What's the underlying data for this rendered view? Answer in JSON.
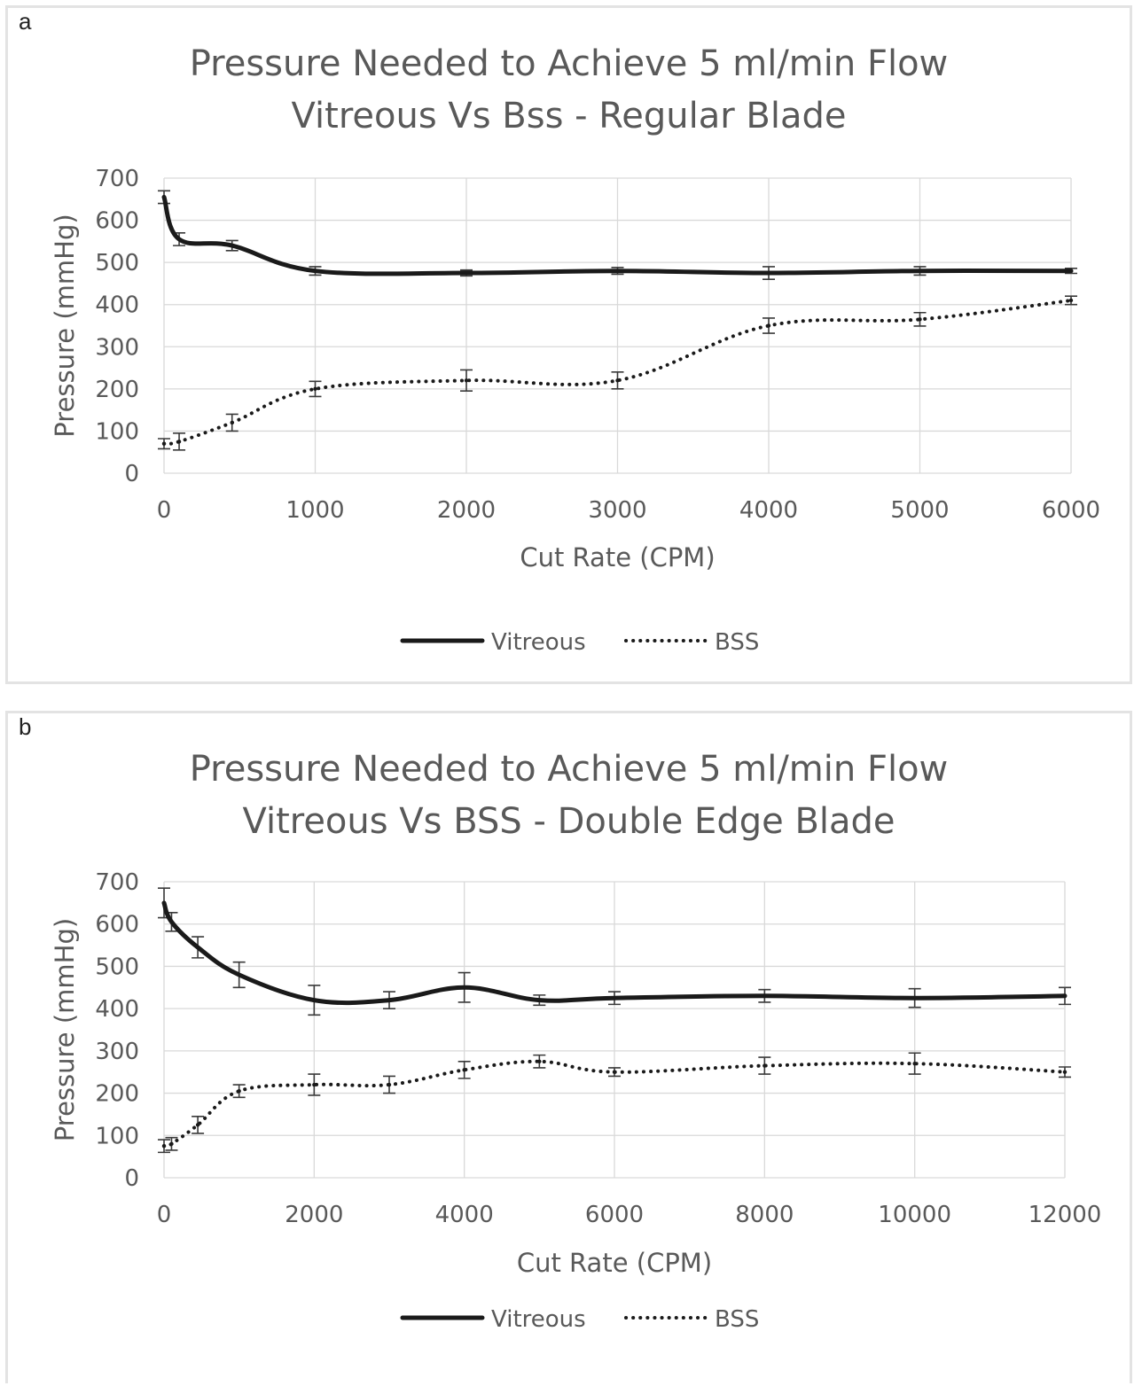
{
  "chart_data": [
    {
      "panel_label": "a",
      "type": "line",
      "title": "Pressure Needed to Achieve 5 ml/min Flow",
      "subtitle": "Vitreous Vs Bss - Regular Blade",
      "xlabel": "Cut Rate (CPM)",
      "ylabel": "Pressure (mmHg)",
      "xlim": [
        0,
        6000
      ],
      "ylim": [
        0,
        700
      ],
      "xticks": [
        0,
        1000,
        2000,
        3000,
        4000,
        5000,
        6000
      ],
      "yticks": [
        0,
        100,
        200,
        300,
        400,
        500,
        600,
        700
      ],
      "grid": true,
      "legend_position": "bottom",
      "series": [
        {
          "name": "Vitreous",
          "style": "solid",
          "color": "#1a1a1a",
          "x": [
            0,
            100,
            450,
            1000,
            2000,
            3000,
            4000,
            5000,
            6000
          ],
          "y": [
            655,
            555,
            540,
            480,
            475,
            480,
            475,
            480,
            480
          ],
          "error": [
            15,
            15,
            12,
            10,
            7,
            8,
            15,
            10,
            6
          ]
        },
        {
          "name": "BSS",
          "style": "dotted",
          "color": "#1a1a1a",
          "x": [
            0,
            100,
            450,
            1000,
            2000,
            3000,
            4000,
            5000,
            6000
          ],
          "y": [
            70,
            75,
            120,
            200,
            220,
            220,
            350,
            365,
            410
          ],
          "error": [
            12,
            20,
            20,
            18,
            25,
            20,
            18,
            16,
            10
          ]
        }
      ]
    },
    {
      "panel_label": "b",
      "type": "line",
      "title": "Pressure Needed to Achieve 5 ml/min Flow",
      "subtitle": "Vitreous Vs BSS - Double Edge Blade",
      "xlabel": "Cut Rate (CPM)",
      "ylabel": "Pressure (mmHg)",
      "xlim": [
        0,
        12000
      ],
      "ylim": [
        0,
        700
      ],
      "xticks": [
        0,
        2000,
        4000,
        6000,
        8000,
        10000,
        12000
      ],
      "yticks": [
        0,
        100,
        200,
        300,
        400,
        500,
        600,
        700
      ],
      "grid": true,
      "legend_position": "bottom",
      "series": [
        {
          "name": "Vitreous",
          "style": "solid",
          "color": "#1a1a1a",
          "x": [
            0,
            100,
            450,
            1000,
            2000,
            3000,
            4000,
            5000,
            6000,
            8000,
            10000,
            12000
          ],
          "y": [
            650,
            605,
            545,
            480,
            420,
            420,
            450,
            420,
            425,
            430,
            425,
            430
          ],
          "error": [
            35,
            22,
            25,
            30,
            35,
            20,
            35,
            12,
            15,
            15,
            22,
            20
          ]
        },
        {
          "name": "BSS",
          "style": "dotted",
          "color": "#1a1a1a",
          "x": [
            0,
            100,
            450,
            1000,
            2000,
            3000,
            4000,
            5000,
            6000,
            8000,
            10000,
            12000
          ],
          "y": [
            75,
            80,
            125,
            205,
            220,
            220,
            255,
            275,
            250,
            265,
            270,
            250
          ],
          "error": [
            15,
            15,
            20,
            15,
            25,
            20,
            20,
            15,
            10,
            20,
            25,
            12
          ]
        }
      ]
    }
  ]
}
